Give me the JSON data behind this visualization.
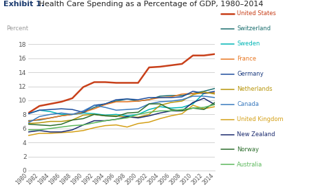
{
  "title_bold": "Exhibit 1.",
  "title_normal": " Health Care Spending as a Percentage of GDP, 1980–2014",
  "ylabel": "Percent",
  "years": [
    1980,
    1982,
    1984,
    1986,
    1988,
    1990,
    1992,
    1994,
    1996,
    1998,
    2000,
    2002,
    2004,
    2006,
    2008,
    2010,
    2012,
    2014
  ],
  "series": {
    "United States": [
      8.2,
      9.2,
      9.5,
      9.8,
      10.3,
      11.9,
      12.6,
      12.6,
      12.5,
      12.5,
      12.5,
      14.7,
      14.8,
      15.0,
      15.2,
      16.4,
      16.4,
      16.6
    ],
    "Switzerland": [
      7.1,
      7.2,
      7.5,
      7.8,
      8.0,
      8.2,
      9.0,
      9.5,
      9.9,
      10.2,
      9.9,
      10.1,
      10.6,
      10.7,
      10.7,
      11.0,
      11.3,
      11.7
    ],
    "Sweden": [
      8.1,
      8.6,
      8.4,
      8.0,
      8.0,
      8.2,
      8.1,
      7.9,
      8.0,
      7.8,
      8.0,
      8.7,
      9.1,
      8.9,
      9.0,
      9.5,
      11.0,
      11.1
    ],
    "France": [
      7.0,
      7.3,
      7.5,
      7.8,
      8.0,
      8.3,
      8.8,
      9.4,
      9.8,
      9.8,
      9.9,
      10.1,
      10.4,
      10.5,
      10.9,
      11.0,
      11.0,
      11.1
    ],
    "Germany": [
      8.1,
      8.6,
      8.7,
      8.8,
      8.7,
      8.3,
      9.3,
      9.5,
      10.1,
      10.2,
      10.1,
      10.4,
      10.4,
      10.4,
      10.5,
      11.3,
      11.0,
      11.3
    ],
    "Netherlands": [
      6.7,
      6.8,
      7.0,
      7.0,
      7.2,
      7.9,
      8.0,
      7.8,
      7.8,
      7.6,
      7.6,
      8.0,
      9.3,
      9.7,
      9.9,
      10.8,
      11.2,
      10.9
    ],
    "Canada": [
      6.8,
      7.7,
      8.0,
      8.2,
      8.0,
      8.5,
      9.3,
      9.0,
      8.6,
      8.7,
      8.8,
      9.5,
      9.8,
      9.9,
      10.1,
      10.6,
      10.6,
      10.4
    ],
    "United Kingdom": [
      5.0,
      5.3,
      5.3,
      5.4,
      5.5,
      5.7,
      6.1,
      6.4,
      6.5,
      6.2,
      6.7,
      6.9,
      7.4,
      7.8,
      8.1,
      9.3,
      8.8,
      9.1
    ],
    "New Zealand": [
      5.5,
      5.7,
      5.5,
      5.5,
      5.8,
      6.5,
      7.1,
      7.1,
      7.3,
      7.7,
      7.5,
      7.8,
      8.2,
      8.5,
      8.5,
      9.7,
      10.3,
      9.4
    ],
    "Norway": [
      6.6,
      6.5,
      6.4,
      6.6,
      7.2,
      7.4,
      8.0,
      7.8,
      7.7,
      8.2,
      8.3,
      9.5,
      9.5,
      8.7,
      8.5,
      8.9,
      8.7,
      9.7
    ],
    "Australia": [
      5.8,
      5.8,
      6.0,
      6.2,
      6.4,
      6.5,
      6.8,
      7.1,
      7.3,
      7.5,
      8.0,
      8.3,
      8.5,
      8.5,
      8.7,
      8.9,
      9.0,
      9.4
    ]
  },
  "colors": {
    "United States": "#c8401a",
    "Switzerland": "#1a6e6e",
    "Sweden": "#00b5b5",
    "France": "#e87722",
    "Germany": "#1f4e9e",
    "Netherlands": "#b8960c",
    "Canada": "#3a7abf",
    "United Kingdom": "#d4a017",
    "New Zealand": "#1a2a6e",
    "Norway": "#2d6e2d",
    "Australia": "#5cb85c"
  },
  "legend_text_colors": {
    "United States": "#c8401a",
    "Switzerland": "#1a6e6e",
    "Sweden": "#00b5b5",
    "France": "#e87722",
    "Germany": "#1a3a7e",
    "Netherlands": "#b8960c",
    "Canada": "#3a7abf",
    "United Kingdom": "#d4a017",
    "New Zealand": "#1a2a6e",
    "Norway": "#2d6e2d",
    "Australia": "#5cb85c"
  },
  "ylim": [
    0,
    19
  ],
  "yticks": [
    0,
    2,
    4,
    6,
    8,
    10,
    12,
    14,
    16,
    18
  ],
  "bg_color": "#ffffff",
  "grid_color": "#cccccc",
  "title_color": "#1a3a6e",
  "ylabel_color": "#999999"
}
